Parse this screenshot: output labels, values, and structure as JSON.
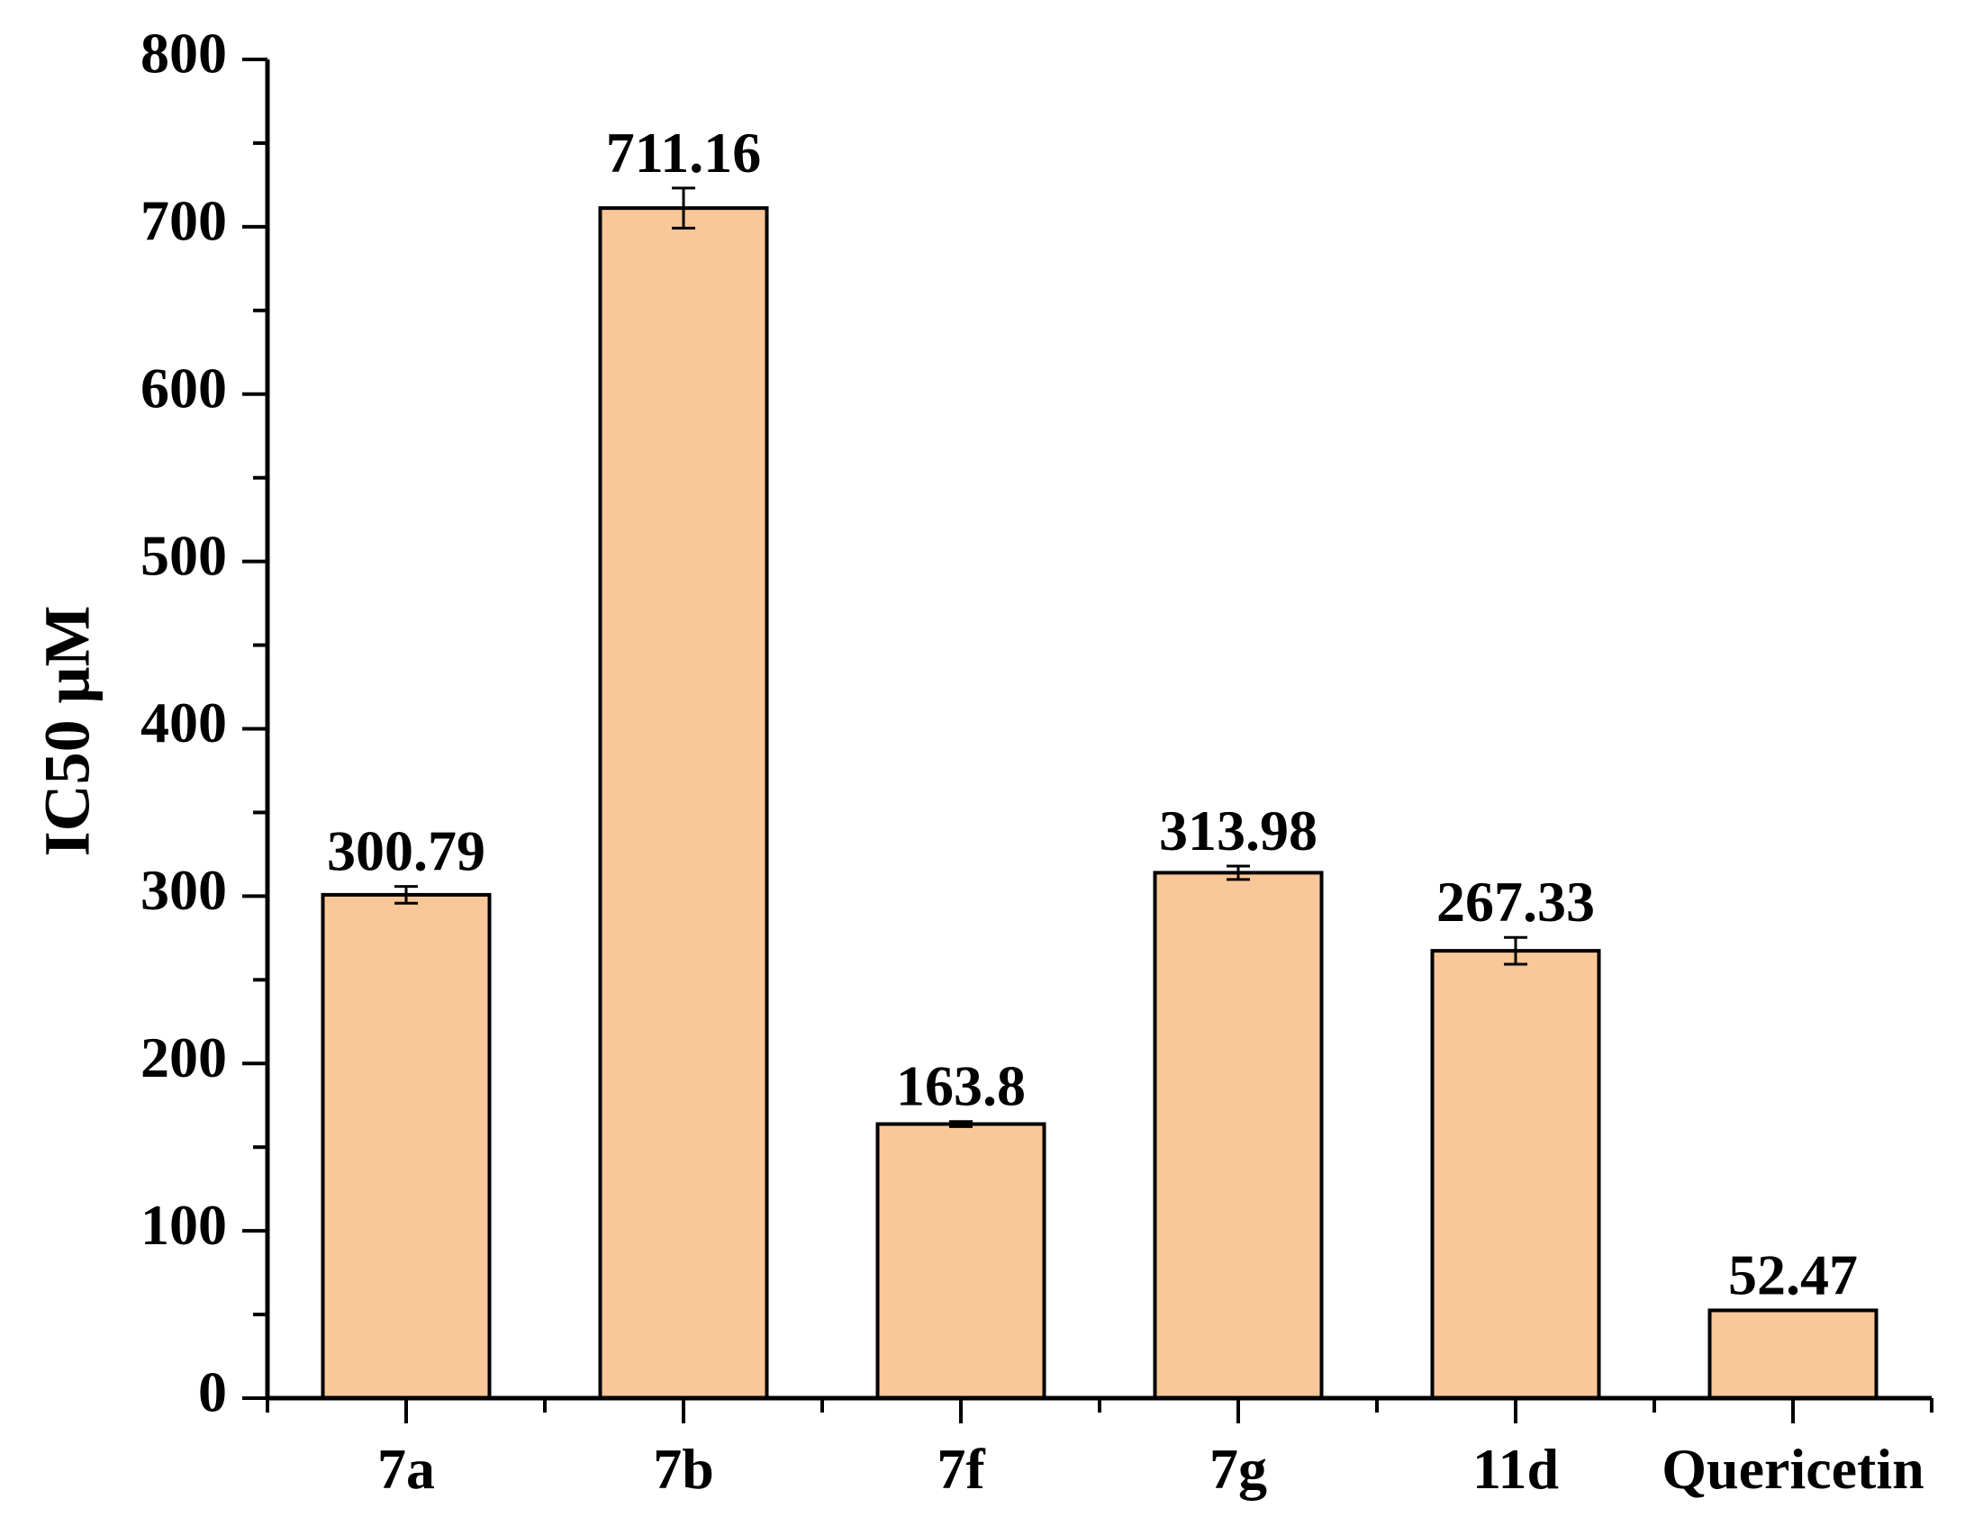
{
  "chart_data": {
    "type": "bar",
    "categories": [
      "7a",
      "7b",
      "7f",
      "7g",
      "11d",
      "Quericetin"
    ],
    "values": [
      300.79,
      711.16,
      163.8,
      313.98,
      267.33,
      52.47
    ],
    "data_labels": [
      "300.79",
      "711.16",
      "163.8",
      "313.98",
      "267.33",
      "52.47"
    ],
    "error": [
      5,
      12,
      1.5,
      4,
      8,
      0
    ],
    "title": "",
    "xlabel": "",
    "ylabel": "IC50 μM",
    "ylim": [
      0,
      800
    ],
    "yticks": [
      0,
      100,
      200,
      300,
      400,
      500,
      600,
      700,
      800
    ],
    "ytick_labels": [
      "0",
      "100",
      "200",
      "300",
      "400",
      "500",
      "600",
      "700",
      "800"
    ],
    "grid": false,
    "legend": "none",
    "colors": {
      "bar_fill": "#FAC799",
      "bar_stroke": "#000000",
      "axis": "#000000"
    }
  }
}
